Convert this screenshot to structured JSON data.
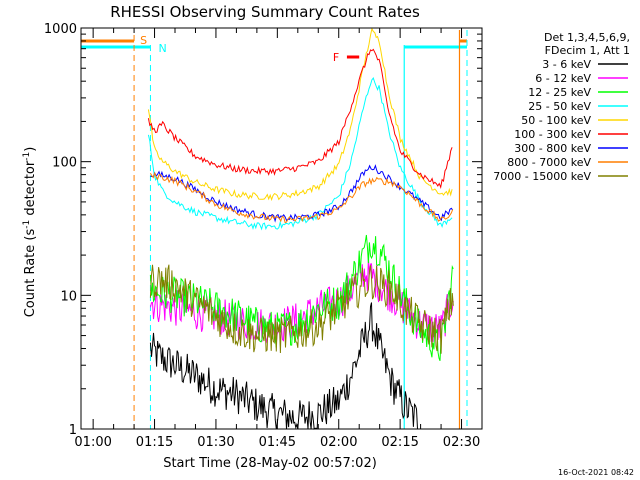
{
  "chart_data": {
    "type": "line",
    "title": "RHESSI Observing Summary Count Rates",
    "xlabel": "Start Time (28-May-02 00:57:02)",
    "ylabel_main": "Count Rate (s",
    "ylabel_sup1": "-1",
    "ylabel_mid": " detector",
    "ylabel_sup2": "-1",
    "ylabel_end": ")",
    "footer": "16-Oct-2021 08:42",
    "yscale": "log",
    "ylim": [
      1,
      1000
    ],
    "xlim": [
      "00:57:02",
      "02:35"
    ],
    "x_ticks": [
      "01:00",
      "01:15",
      "01:30",
      "01:45",
      "02:00",
      "02:15",
      "02:30"
    ],
    "y_ticks": [
      "1",
      "10",
      "100",
      "1000"
    ],
    "legend_header": [
      "Det 1,3,4,5,6,9,",
      "FDecim 1, Att 1"
    ],
    "flags": {
      "saa_label": "S",
      "night_label": "N",
      "flare_label": "F",
      "saa_color": "#ff7f00",
      "night_color": "#00ffff",
      "flare_color": "#ff0000"
    },
    "series": [
      {
        "name": "3 - 6 keV",
        "color": "#000000",
        "x": [
          "01:14",
          "01:16",
          "01:20",
          "01:25",
          "01:30",
          "01:35",
          "01:40",
          "01:45",
          "01:50",
          "01:55",
          "02:00",
          "02:03",
          "02:06",
          "02:08",
          "02:10",
          "02:13",
          "02:16",
          "02:20"
        ],
        "y": [
          4,
          3.5,
          3,
          2.5,
          2,
          1.8,
          1.5,
          1.3,
          1.2,
          1.3,
          1.6,
          2.5,
          4.5,
          6.5,
          4,
          2.2,
          1.5,
          1.1
        ]
      },
      {
        "name": "6 - 12 keV",
        "color": "#ff00ff",
        "x": [
          "01:14",
          "01:16",
          "01:20",
          "01:25",
          "01:30",
          "01:35",
          "01:40",
          "01:45",
          "01:50",
          "01:55",
          "02:00",
          "02:03",
          "02:06",
          "02:08",
          "02:10",
          "02:13",
          "02:16",
          "02:20",
          "02:25",
          "02:28"
        ],
        "y": [
          9,
          8.5,
          8,
          7.5,
          7,
          6.5,
          6,
          6,
          6.5,
          8,
          9,
          11,
          15,
          14,
          12,
          10,
          8,
          6,
          5.5,
          10
        ]
      },
      {
        "name": "12 - 25 keV",
        "color": "#00ff00",
        "x": [
          "01:14",
          "01:16",
          "01:20",
          "01:25",
          "01:30",
          "01:35",
          "01:40",
          "01:45",
          "01:50",
          "01:55",
          "02:00",
          "02:03",
          "02:06",
          "02:08",
          "02:10",
          "02:13",
          "02:16",
          "02:20",
          "02:25",
          "02:28"
        ],
        "y": [
          11,
          10.5,
          10,
          9,
          8,
          7,
          6,
          5.5,
          6,
          8,
          9,
          13,
          20,
          26,
          22,
          14,
          9,
          5.5,
          4,
          15
        ]
      },
      {
        "name": "25 - 50 keV",
        "color": "#00ffff",
        "x": [
          "01:13.5",
          "01:15",
          "01:17",
          "01:20",
          "01:25",
          "01:30",
          "01:35",
          "01:40",
          "01:45",
          "01:50",
          "01:55",
          "02:00",
          "02:03",
          "02:06",
          "02:08",
          "02:10",
          "02:12",
          "02:15",
          "02:20",
          "02:25",
          "02:28"
        ],
        "y": [
          160,
          80,
          60,
          50,
          42,
          38,
          35,
          33,
          33,
          35,
          40,
          55,
          100,
          250,
          420,
          350,
          180,
          90,
          50,
          33,
          40
        ]
      },
      {
        "name": "50 - 100 keV",
        "color": "#ffd700",
        "x": [
          "01:13.5",
          "01:15",
          "01:17",
          "01:20",
          "01:25",
          "01:30",
          "01:35",
          "01:40",
          "01:45",
          "01:50",
          "01:55",
          "02:00",
          "02:03",
          "02:06",
          "02:08",
          "02:10",
          "02:12",
          "02:15",
          "02:20",
          "02:25",
          "02:28"
        ],
        "y": [
          250,
          120,
          100,
          85,
          70,
          62,
          57,
          55,
          55,
          58,
          65,
          95,
          180,
          500,
          950,
          800,
          350,
          150,
          75,
          58,
          60
        ]
      },
      {
        "name": "100 - 300 keV",
        "color": "#ff0000",
        "x": [
          "01:13.5",
          "01:15",
          "01:17",
          "01:20",
          "01:25",
          "01:30",
          "01:35",
          "01:40",
          "01:45",
          "01:50",
          "01:55",
          "02:00",
          "02:03",
          "02:06",
          "02:08",
          "02:10",
          "02:12",
          "02:15",
          "02:20",
          "02:25",
          "02:28"
        ],
        "y": [
          200,
          170,
          190,
          150,
          110,
          95,
          88,
          85,
          85,
          90,
          100,
          140,
          260,
          500,
          720,
          550,
          250,
          120,
          80,
          65,
          140
        ]
      },
      {
        "name": "300 - 800 keV",
        "color": "#0000ff",
        "x": [
          "01:14",
          "01:16",
          "01:20",
          "01:25",
          "01:30",
          "01:35",
          "01:40",
          "01:45",
          "01:50",
          "01:55",
          "02:00",
          "02:03",
          "02:06",
          "02:08",
          "02:10",
          "02:13",
          "02:16",
          "02:20",
          "02:25",
          "02:28"
        ],
        "y": [
          80,
          80,
          75,
          62,
          50,
          44,
          40,
          38,
          38,
          40,
          46,
          60,
          82,
          92,
          85,
          72,
          62,
          50,
          38,
          45
        ]
      },
      {
        "name": "800 - 7000 keV",
        "color": "#ff7f00",
        "x": [
          "01:14",
          "01:16",
          "01:20",
          "01:25",
          "01:30",
          "01:35",
          "01:40",
          "01:45",
          "01:50",
          "01:55",
          "02:00",
          "02:03",
          "02:06",
          "02:08",
          "02:10",
          "02:13",
          "02:16",
          "02:20",
          "02:25",
          "02:28"
        ],
        "y": [
          78,
          78,
          72,
          60,
          48,
          42,
          39,
          37,
          37,
          39,
          44,
          55,
          68,
          72,
          72,
          70,
          62,
          48,
          36,
          42
        ]
      },
      {
        "name": "7000 - 15000 keV",
        "color": "#808000",
        "x": [
          "01:14",
          "01:16",
          "01:20",
          "01:25",
          "01:30",
          "01:35",
          "01:40",
          "01:45",
          "01:50",
          "01:55",
          "02:00",
          "02:03",
          "02:06",
          "02:08",
          "02:10",
          "02:13",
          "02:16",
          "02:20",
          "02:25",
          "02:28"
        ],
        "y": [
          13,
          13,
          12,
          9,
          7,
          5.5,
          5,
          5,
          5.2,
          6,
          8,
          10,
          12,
          13,
          12,
          11,
          8,
          6,
          5,
          10
        ]
      }
    ]
  }
}
